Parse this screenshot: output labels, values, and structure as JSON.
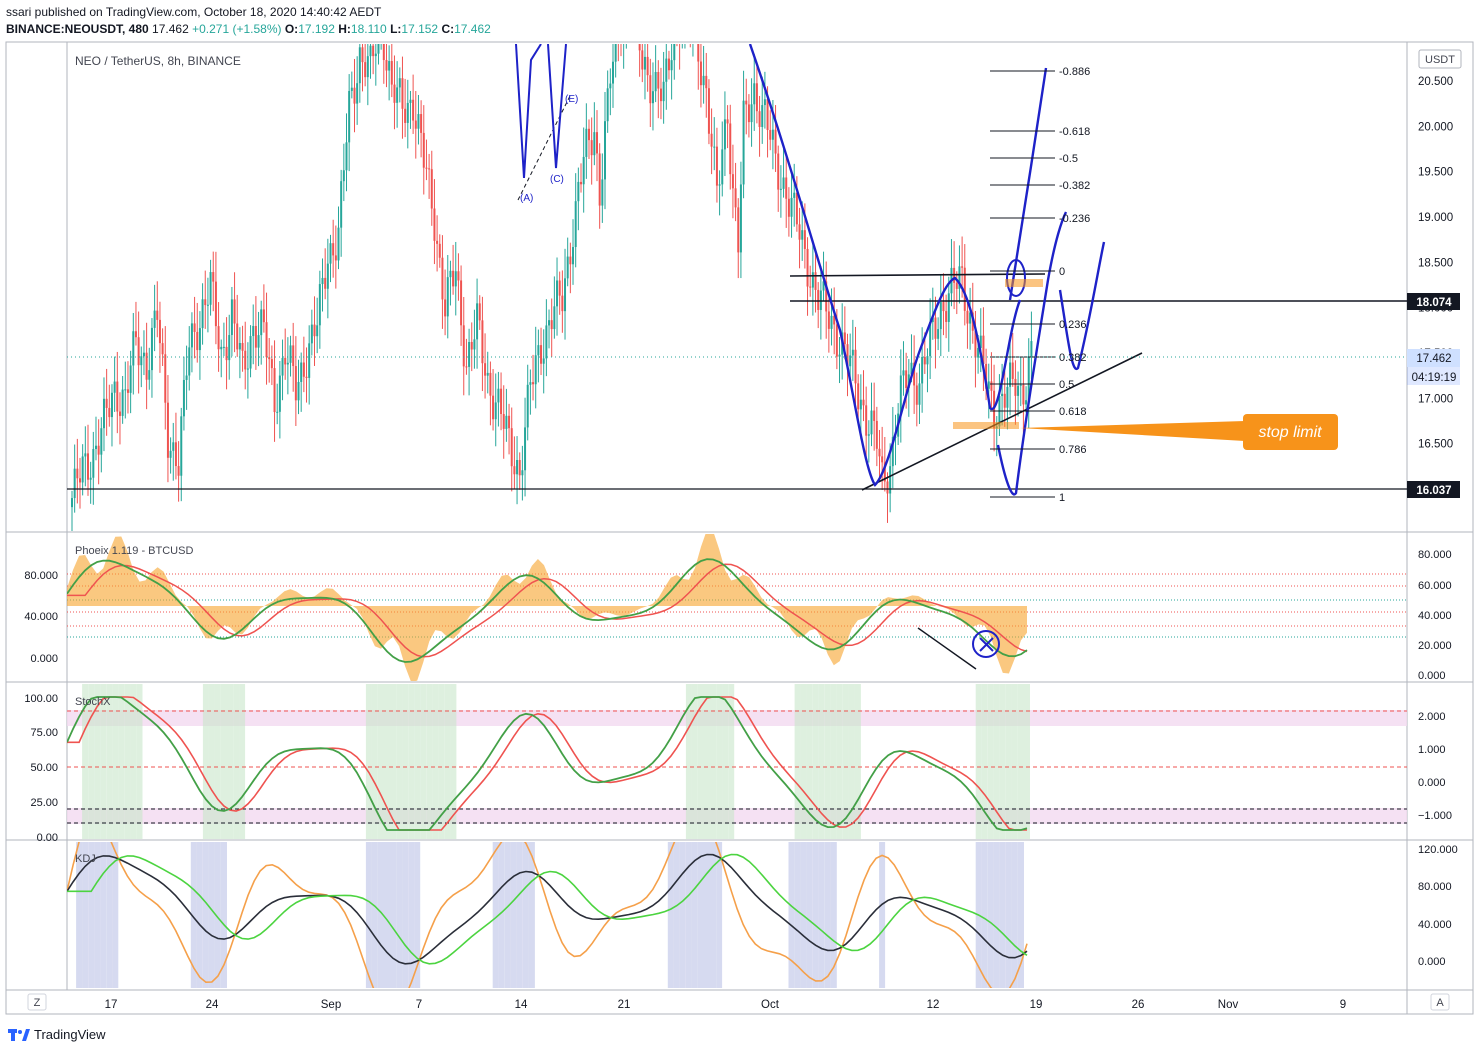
{
  "header": {
    "publish_line": "ssari published on TradingView.com, October 18, 2020 14:40:42 AEDT",
    "symbol": "BINANCE:NEOUSDT, 480",
    "last": "17.462",
    "change": "+0.271 (+1.58%)",
    "o_label": "O:",
    "o": "17.192",
    "h_label": "H:",
    "h": "18.110",
    "l_label": "L:",
    "l": "17.152",
    "c_label": "C:",
    "c": "17.462"
  },
  "main_pane": {
    "title": "NEO / TetherUS, 8h, BINANCE",
    "currency": "USDT",
    "price_ticks": [
      "20.500",
      "20.000",
      "19.500",
      "19.000",
      "18.500",
      "18.000",
      "17.500",
      "17.000",
      "16.500",
      "16.000"
    ],
    "price_tags": {
      "resistance": "18.074",
      "last": "17.462",
      "countdown": "04:19:19",
      "support": "16.037"
    },
    "fib_levels": [
      "-0.886",
      "-0.618",
      "-0.5",
      "-0.382",
      "-0.236",
      "0",
      "0.236",
      "0.382",
      "0.5",
      "0.618",
      "0.786",
      "1"
    ],
    "wave_labels": [
      "(A)",
      "(C)",
      "(E)"
    ],
    "callout": "stop limit"
  },
  "phoeix_pane": {
    "title": "Phoeix 1.119 - BTCUSD",
    "left_ticks": [
      "80.000",
      "40.000",
      "0.000"
    ],
    "right_ticks": [
      "80.000",
      "60.000",
      "40.000",
      "20.000",
      "0.000"
    ]
  },
  "stochx_pane": {
    "title": "StochX",
    "left_ticks": [
      "100.00",
      "75.00",
      "50.00",
      "25.00",
      "0.00"
    ],
    "right_ticks": [
      "2.000",
      "1.000",
      "0.000",
      "−1.000"
    ]
  },
  "kdj_pane": {
    "title": "KDJ",
    "right_ticks": [
      "120.000",
      "80.000",
      "40.000",
      "0.000"
    ]
  },
  "time_axis": [
    "17",
    "24",
    "Sep",
    "7",
    "14",
    "21",
    "Oct",
    "12",
    "19",
    "26",
    "Nov",
    "9"
  ],
  "corner_buttons": {
    "left": "Z",
    "right": "A"
  },
  "footer": {
    "brand": "TradingView"
  },
  "colors": {
    "up": "#26a69a",
    "down": "#ef5350",
    "wave": "#1e22c8",
    "orange": "#f7931a",
    "dark": "#131722"
  },
  "chart_data": {
    "type": "candlestick",
    "title": "NEO / TetherUS, 8h, BINANCE",
    "x_labels": [
      "17",
      "24",
      "Sep",
      "7",
      "14",
      "21",
      "Oct",
      "12",
      "19",
      "26",
      "Nov",
      "9"
    ],
    "y_ticks": [
      16.0,
      16.5,
      17.0,
      17.5,
      18.0,
      18.5,
      19.0,
      19.5,
      20.0,
      20.5
    ],
    "ylim": [
      15.55,
      21.05
    ],
    "close_path": [
      [
        0,
        15.9
      ],
      [
        4,
        16.2
      ],
      [
        8,
        16.4
      ],
      [
        12,
        16.7
      ],
      [
        16,
        17.1
      ],
      [
        20,
        17.0
      ],
      [
        24,
        17.6
      ],
      [
        28,
        17.4
      ],
      [
        32,
        17.9
      ],
      [
        36,
        16.6
      ],
      [
        40,
        16.3
      ],
      [
        44,
        17.6
      ],
      [
        48,
        17.9
      ],
      [
        52,
        18.2
      ],
      [
        56,
        17.5
      ],
      [
        60,
        17.9
      ],
      [
        64,
        17.3
      ],
      [
        68,
        17.8
      ],
      [
        72,
        17.7
      ],
      [
        76,
        17.0
      ],
      [
        80,
        17.5
      ],
      [
        84,
        17.1
      ],
      [
        88,
        17.5
      ],
      [
        92,
        17.8
      ],
      [
        96,
        18.6
      ],
      [
        100,
        18.8
      ],
      [
        104,
        20.2
      ],
      [
        108,
        20.8
      ],
      [
        112,
        20.6
      ],
      [
        116,
        21.2
      ],
      [
        120,
        20.4
      ],
      [
        124,
        20.2
      ],
      [
        128,
        20.3
      ],
      [
        132,
        19.6
      ],
      [
        136,
        19.0
      ],
      [
        140,
        18.0
      ],
      [
        144,
        18.4
      ],
      [
        148,
        17.4
      ],
      [
        152,
        17.8
      ],
      [
        156,
        17.2
      ],
      [
        160,
        16.9
      ],
      [
        164,
        16.5
      ],
      [
        168,
        16.2
      ],
      [
        172,
        17.1
      ],
      [
        176,
        17.6
      ],
      [
        180,
        17.9
      ],
      [
        184,
        18.1
      ],
      [
        188,
        18.9
      ],
      [
        192,
        19.6
      ],
      [
        196,
        20.0
      ],
      [
        198,
        19.3
      ],
      [
        200,
        19.9
      ],
      [
        202,
        20.5
      ],
      [
        204,
        20.9
      ],
      [
        206,
        21.2
      ],
      [
        210,
        21.4
      ],
      [
        214,
        20.7
      ],
      [
        218,
        20.5
      ],
      [
        222,
        20.3
      ],
      [
        226,
        21.1
      ],
      [
        230,
        21.3
      ],
      [
        234,
        21.0
      ],
      [
        238,
        20.4
      ],
      [
        242,
        19.2
      ],
      [
        244,
        19.7
      ],
      [
        246,
        20.2
      ],
      [
        248,
        19.3
      ],
      [
        250,
        18.7
      ],
      [
        252,
        20.0
      ],
      [
        256,
        20.4
      ],
      [
        260,
        20.1
      ],
      [
        264,
        19.6
      ],
      [
        268,
        19.3
      ],
      [
        272,
        18.9
      ],
      [
        276,
        18.5
      ],
      [
        280,
        18.1
      ],
      [
        282,
        18.0
      ],
      [
        286,
        17.8
      ],
      [
        290,
        17.5
      ],
      [
        294,
        17.2
      ],
      [
        298,
        16.8
      ],
      [
        302,
        16.5
      ],
      [
        304,
        16.1
      ],
      [
        307,
        16.3
      ],
      [
        310,
        16.9
      ],
      [
        314,
        17.3
      ],
      [
        318,
        17.2
      ],
      [
        322,
        17.6
      ],
      [
        326,
        18.0
      ],
      [
        330,
        18.2
      ],
      [
        334,
        18.3
      ],
      [
        337,
        17.9
      ],
      [
        340,
        17.5
      ],
      [
        343,
        17.2
      ],
      [
        346,
        16.9
      ],
      [
        350,
        17.0
      ],
      [
        354,
        17.2
      ],
      [
        356,
        17.1
      ],
      [
        358,
        17.19
      ],
      [
        360,
        17.46
      ]
    ]
  }
}
